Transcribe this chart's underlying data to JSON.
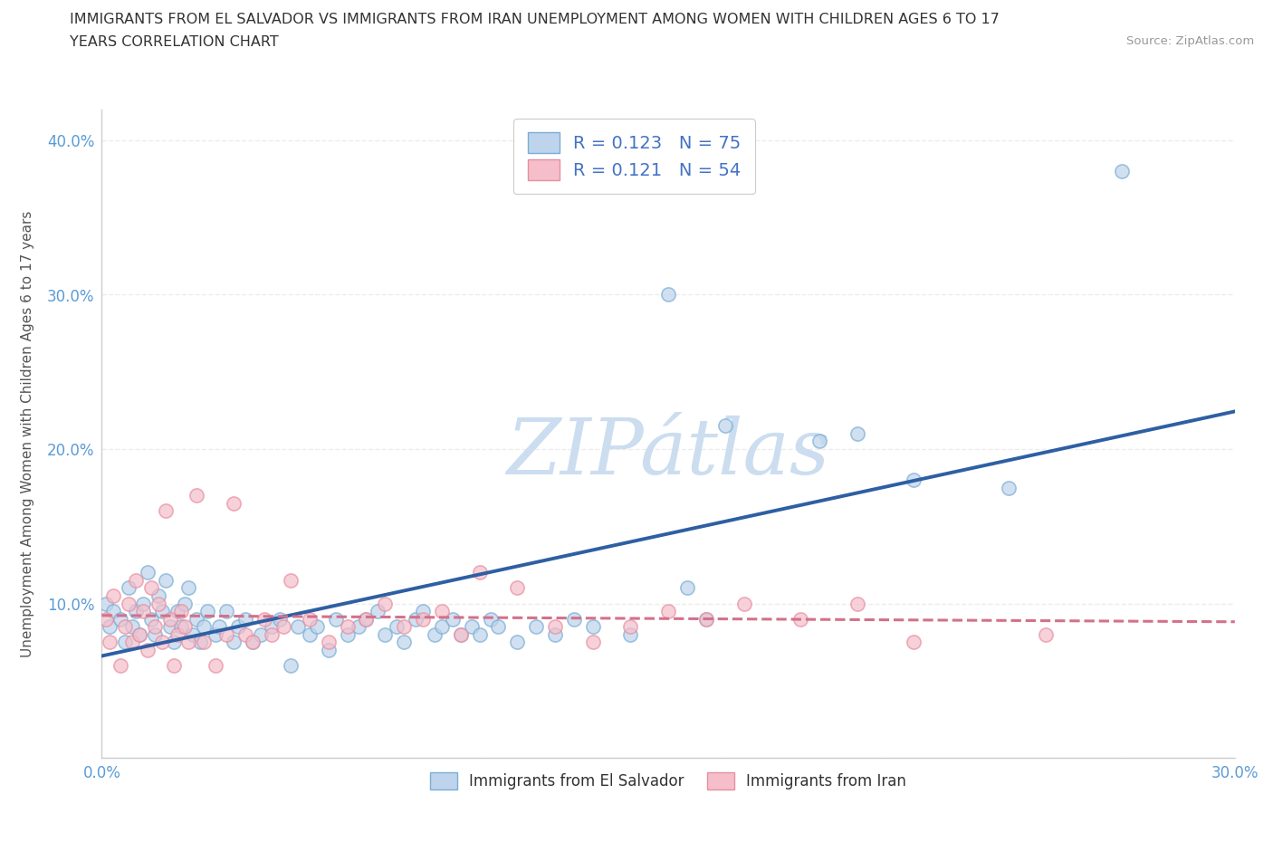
{
  "title_line1": "IMMIGRANTS FROM EL SALVADOR VS IMMIGRANTS FROM IRAN UNEMPLOYMENT AMONG WOMEN WITH CHILDREN AGES 6 TO 17",
  "title_line2": "YEARS CORRELATION CHART",
  "source": "Source: ZipAtlas.com",
  "ylabel": "Unemployment Among Women with Children Ages 6 to 17 years",
  "xlim": [
    0.0,
    0.3
  ],
  "ylim": [
    0.0,
    0.42
  ],
  "x_ticks": [
    0.0,
    0.05,
    0.1,
    0.15,
    0.2,
    0.25,
    0.3
  ],
  "y_ticks": [
    0.0,
    0.1,
    0.2,
    0.3,
    0.4
  ],
  "x_tick_labels": [
    "0.0%",
    "",
    "",
    "",
    "",
    "",
    "30.0%"
  ],
  "y_tick_labels": [
    "",
    "10.0%",
    "20.0%",
    "30.0%",
    "40.0%"
  ],
  "salvador_R": "0.123",
  "salvador_N": "75",
  "iran_R": "0.121",
  "iran_N": "54",
  "salvador_color_fill": "#bed4ec",
  "salvador_color_edge": "#7aaed4",
  "iran_color_fill": "#f5beca",
  "iran_color_edge": "#e88fa0",
  "salvador_line_color": "#2e5fa3",
  "iran_line_color": "#d4708a",
  "watermark_color": "#ccddf0",
  "background_color": "#ffffff",
  "grid_color": "#e8e8e8",
  "salvador_x": [
    0.001,
    0.002,
    0.003,
    0.005,
    0.006,
    0.007,
    0.008,
    0.009,
    0.01,
    0.011,
    0.012,
    0.013,
    0.014,
    0.015,
    0.016,
    0.017,
    0.018,
    0.019,
    0.02,
    0.021,
    0.022,
    0.023,
    0.024,
    0.025,
    0.026,
    0.027,
    0.028,
    0.03,
    0.031,
    0.033,
    0.035,
    0.036,
    0.038,
    0.04,
    0.042,
    0.045,
    0.047,
    0.05,
    0.052,
    0.055,
    0.057,
    0.06,
    0.062,
    0.065,
    0.068,
    0.07,
    0.073,
    0.075,
    0.078,
    0.08,
    0.083,
    0.085,
    0.088,
    0.09,
    0.093,
    0.095,
    0.098,
    0.1,
    0.103,
    0.105,
    0.11,
    0.115,
    0.12,
    0.125,
    0.13,
    0.14,
    0.15,
    0.155,
    0.16,
    0.165,
    0.19,
    0.2,
    0.215,
    0.24,
    0.27
  ],
  "salvador_y": [
    0.1,
    0.085,
    0.095,
    0.09,
    0.075,
    0.11,
    0.085,
    0.095,
    0.08,
    0.1,
    0.12,
    0.09,
    0.08,
    0.105,
    0.095,
    0.115,
    0.085,
    0.075,
    0.095,
    0.085,
    0.1,
    0.11,
    0.08,
    0.09,
    0.075,
    0.085,
    0.095,
    0.08,
    0.085,
    0.095,
    0.075,
    0.085,
    0.09,
    0.075,
    0.08,
    0.085,
    0.09,
    0.06,
    0.085,
    0.08,
    0.085,
    0.07,
    0.09,
    0.08,
    0.085,
    0.09,
    0.095,
    0.08,
    0.085,
    0.075,
    0.09,
    0.095,
    0.08,
    0.085,
    0.09,
    0.08,
    0.085,
    0.08,
    0.09,
    0.085,
    0.075,
    0.085,
    0.08,
    0.09,
    0.085,
    0.08,
    0.3,
    0.11,
    0.09,
    0.215,
    0.205,
    0.21,
    0.18,
    0.175,
    0.38
  ],
  "iran_x": [
    0.001,
    0.002,
    0.003,
    0.005,
    0.006,
    0.007,
    0.008,
    0.009,
    0.01,
    0.011,
    0.012,
    0.013,
    0.014,
    0.015,
    0.016,
    0.017,
    0.018,
    0.019,
    0.02,
    0.021,
    0.022,
    0.023,
    0.025,
    0.027,
    0.03,
    0.033,
    0.035,
    0.038,
    0.04,
    0.043,
    0.045,
    0.048,
    0.05,
    0.055,
    0.06,
    0.065,
    0.07,
    0.075,
    0.08,
    0.085,
    0.09,
    0.095,
    0.1,
    0.11,
    0.12,
    0.13,
    0.14,
    0.15,
    0.16,
    0.17,
    0.185,
    0.2,
    0.215,
    0.25
  ],
  "iran_y": [
    0.09,
    0.075,
    0.105,
    0.06,
    0.085,
    0.1,
    0.075,
    0.115,
    0.08,
    0.095,
    0.07,
    0.11,
    0.085,
    0.1,
    0.075,
    0.16,
    0.09,
    0.06,
    0.08,
    0.095,
    0.085,
    0.075,
    0.17,
    0.075,
    0.06,
    0.08,
    0.165,
    0.08,
    0.075,
    0.09,
    0.08,
    0.085,
    0.115,
    0.09,
    0.075,
    0.085,
    0.09,
    0.1,
    0.085,
    0.09,
    0.095,
    0.08,
    0.12,
    0.11,
    0.085,
    0.075,
    0.085,
    0.095,
    0.09,
    0.1,
    0.09,
    0.1,
    0.075,
    0.08
  ]
}
